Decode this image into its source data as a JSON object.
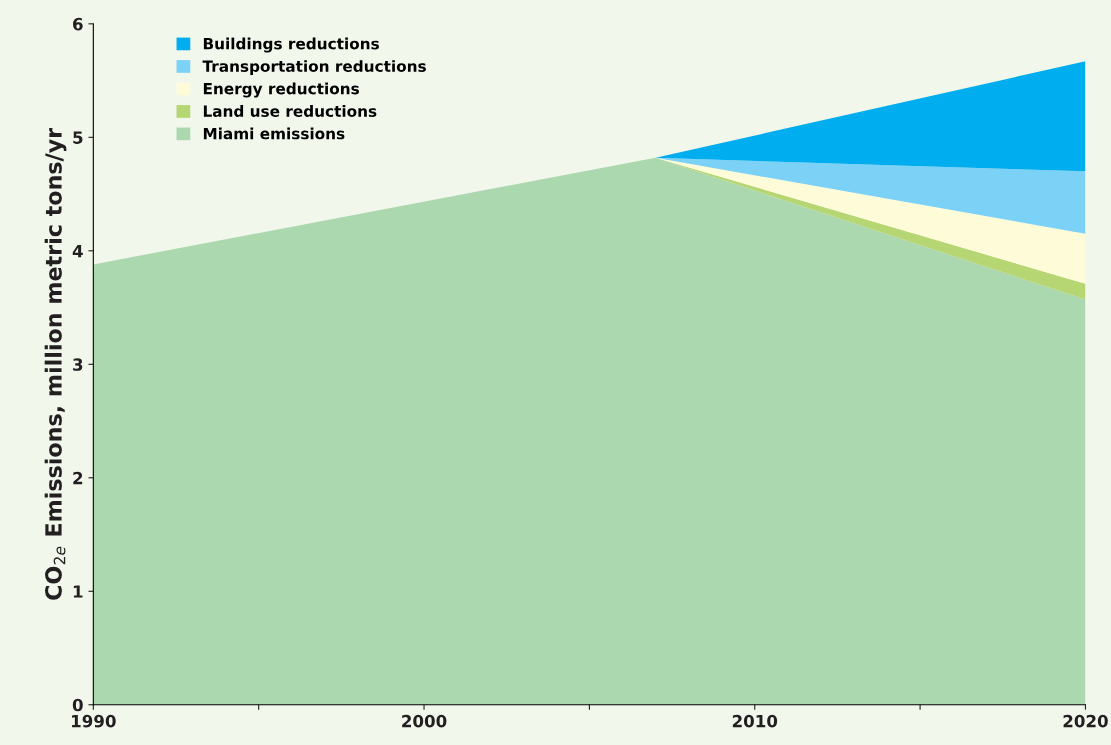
{
  "chart_data": {
    "type": "area",
    "stacked": true,
    "ylabel": "CO$_{2e}$ Emissions, million metric tons/yr",
    "x": [
      1990,
      2007,
      2020
    ],
    "series": [
      {
        "name": "Miami emissions",
        "color": "#acd8af",
        "values": [
          3.88,
          4.82,
          3.57
        ]
      },
      {
        "name": "Land use reductions",
        "color": "#b5d672",
        "values": [
          0,
          0,
          0.14
        ]
      },
      {
        "name": "Energy reductions",
        "color": "#fefbd8",
        "values": [
          0,
          0,
          0.44
        ]
      },
      {
        "name": "Transportation reductions",
        "color": "#7bd1f6",
        "values": [
          0,
          0,
          0.55
        ]
      },
      {
        "name": "Buildings reductions",
        "color": "#00aeef",
        "values": [
          0,
          0,
          0.97
        ]
      }
    ],
    "xlim": [
      1990,
      2020
    ],
    "xticks": [
      1990,
      {
        "value": 1995,
        "label": null
      },
      2000,
      {
        "value": 2005,
        "label": null
      },
      2010,
      {
        "value": 2015,
        "label": null
      },
      2020
    ],
    "ylim": [
      0,
      6
    ],
    "yticks": [
      0,
      1,
      2,
      3,
      4,
      5,
      6
    ],
    "grid": false,
    "legend": "top left"
  }
}
